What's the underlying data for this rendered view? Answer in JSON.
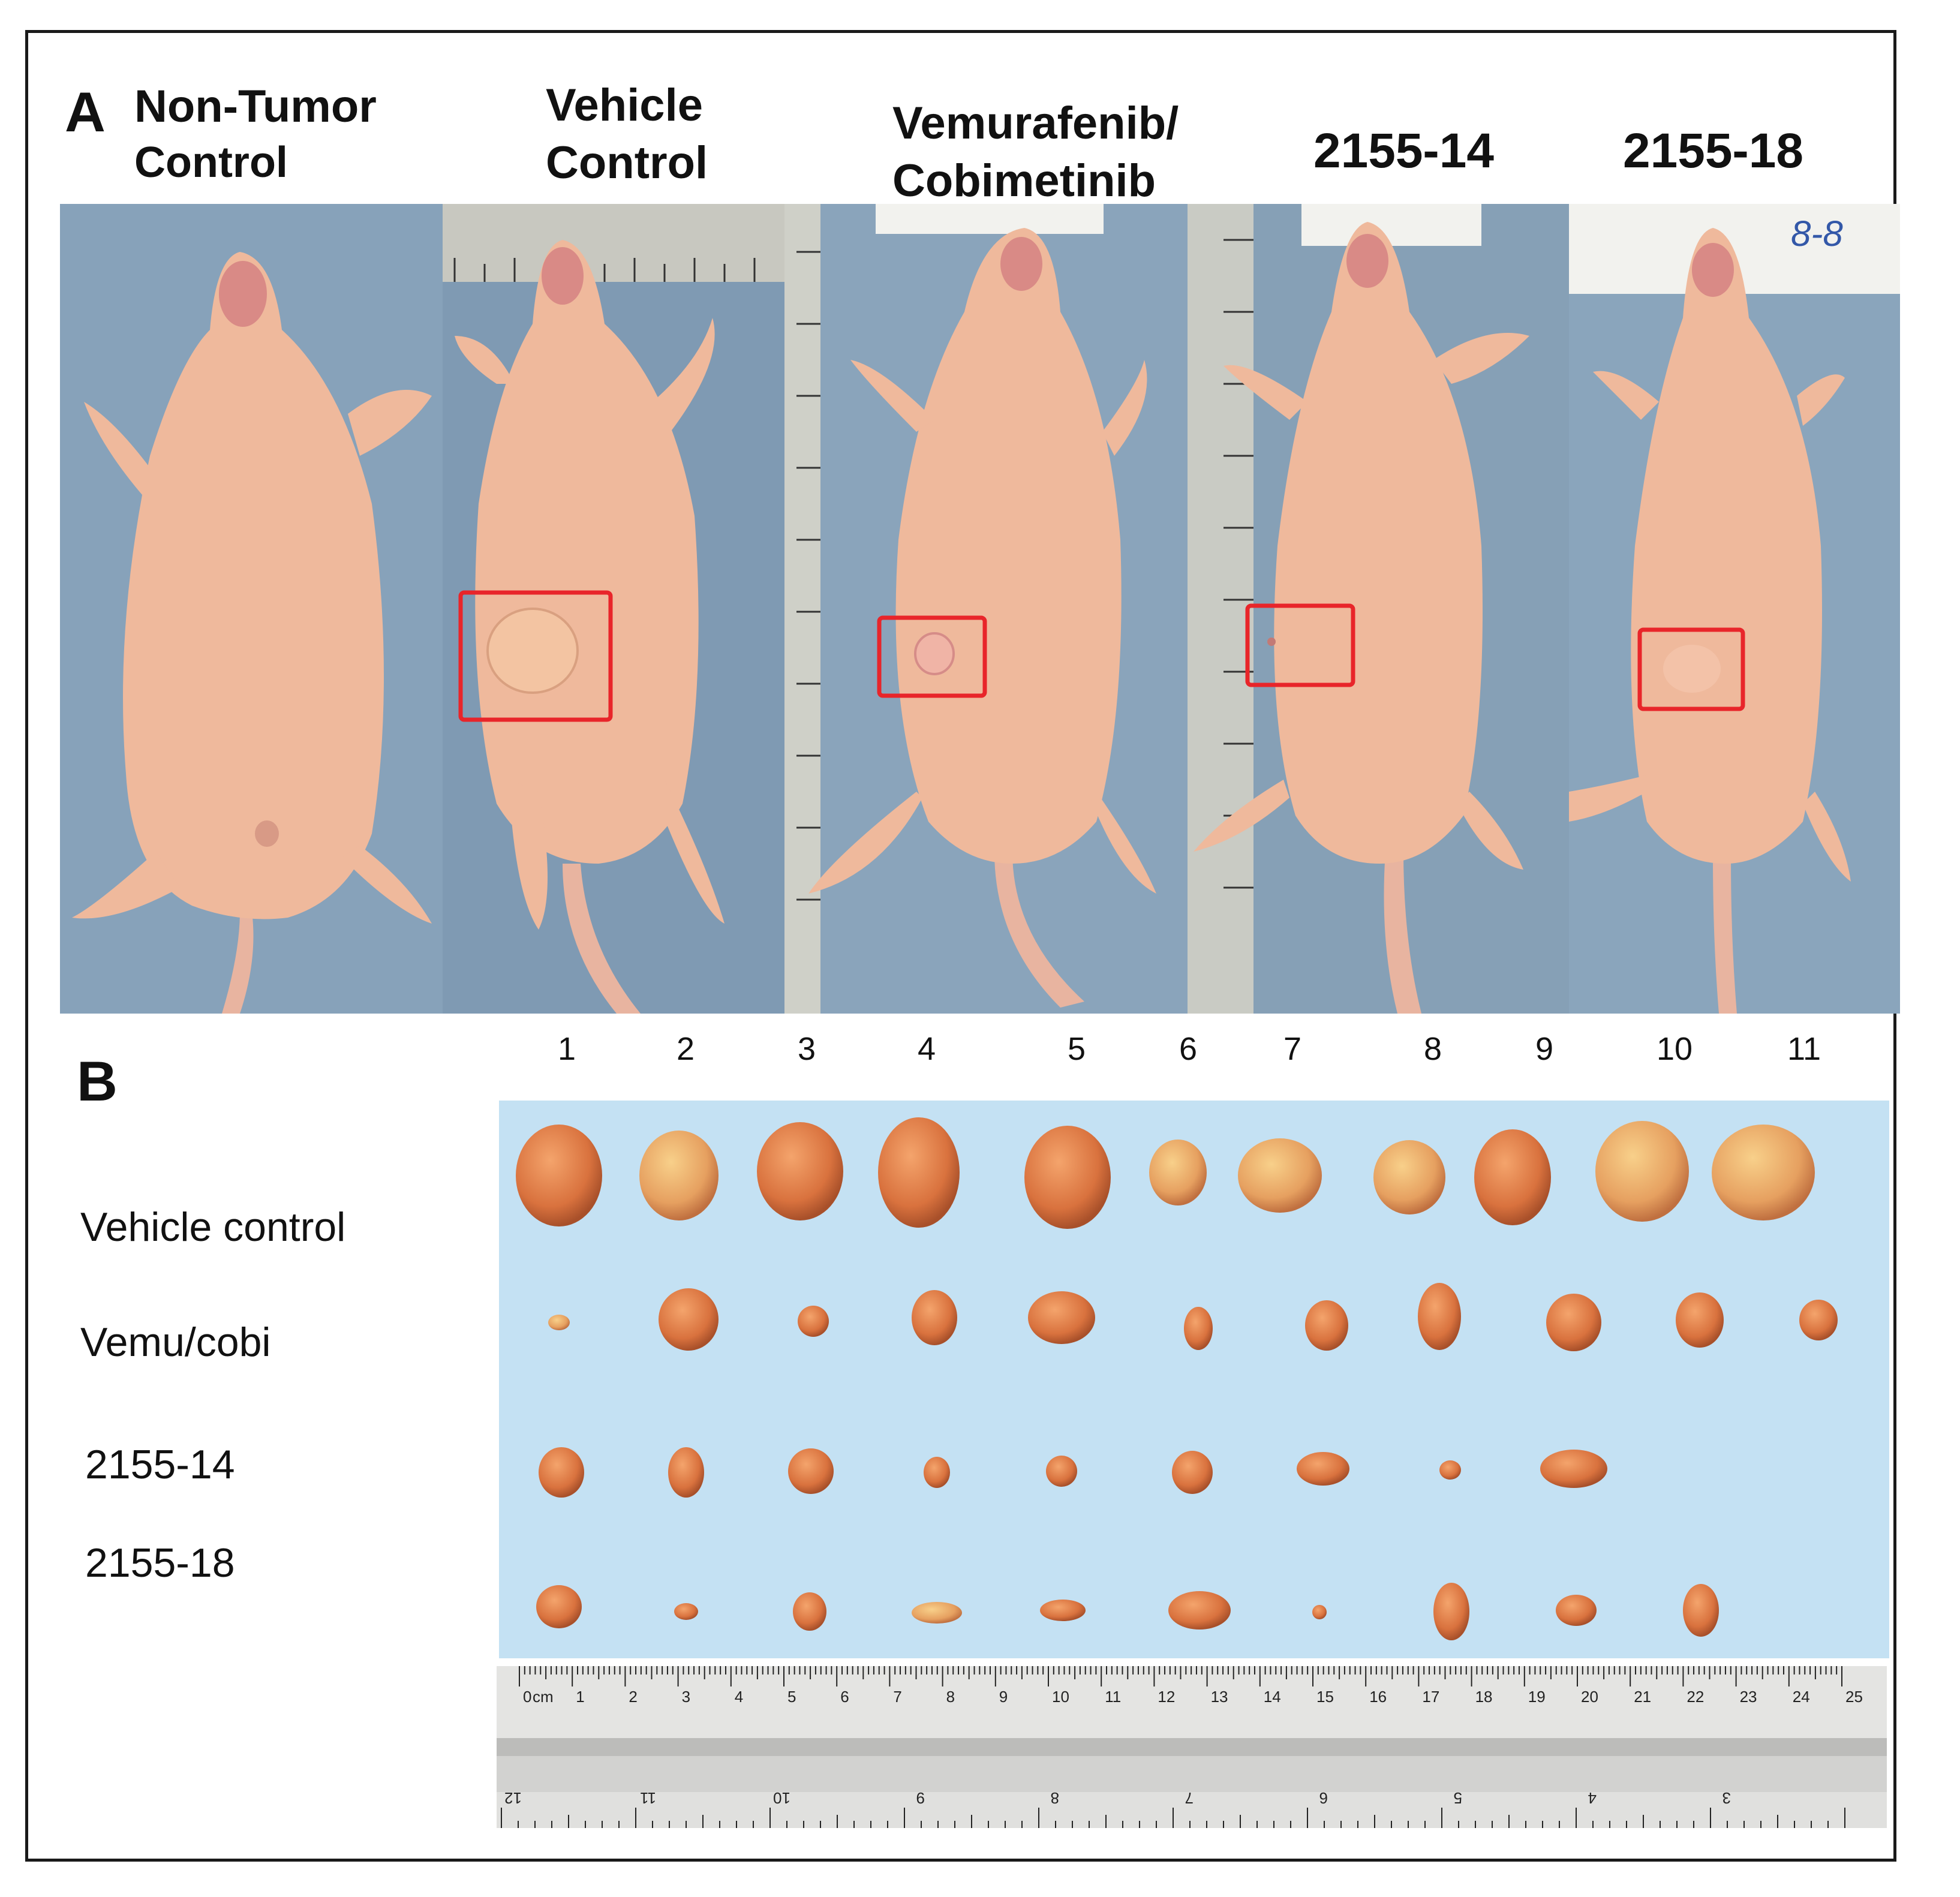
{
  "panel_a": {
    "letter": "A",
    "groups": [
      {
        "line1": "Non-Tumor",
        "line2": "Control"
      },
      {
        "line1": "Vehicle",
        "line2": "Control"
      },
      {
        "line1": "Vemurafenib/",
        "line2": "Cobimetinib"
      },
      {
        "line1": "2155-14",
        "line2": ""
      },
      {
        "line1": "2155-18",
        "line2": ""
      }
    ],
    "photo_labels": [
      "8-8"
    ]
  },
  "panel_b": {
    "letter": "B",
    "column_numbers": [
      "1",
      "2",
      "3",
      "4",
      "5",
      "6",
      "7",
      "8",
      "9",
      "10",
      "11"
    ],
    "rows": [
      {
        "label": "Vehicle control",
        "count": 11
      },
      {
        "label": "Vemu/cobi",
        "count": 11
      },
      {
        "label": "2155-14",
        "count": 9
      },
      {
        "label": "2155-18",
        "count": 10
      }
    ],
    "ruler_top": [
      "0",
      "cm",
      "1",
      "2",
      "3",
      "4",
      "5",
      "6",
      "7",
      "8",
      "9",
      "10",
      "11",
      "12",
      "13",
      "14",
      "15",
      "16",
      "17",
      "18",
      "19",
      "20",
      "21",
      "22",
      "23",
      "24",
      "25"
    ],
    "ruler_bottom": [
      "12",
      "11",
      "10",
      "9",
      "8",
      "7",
      "6",
      "5",
      "4",
      "3"
    ]
  },
  "colors": {
    "skin": "#f0b89a",
    "drape": "#8ca4ba",
    "tumor_background": "#c4e1f3",
    "highlight_box": "#e8252a",
    "tumor": "#d67a4e"
  }
}
